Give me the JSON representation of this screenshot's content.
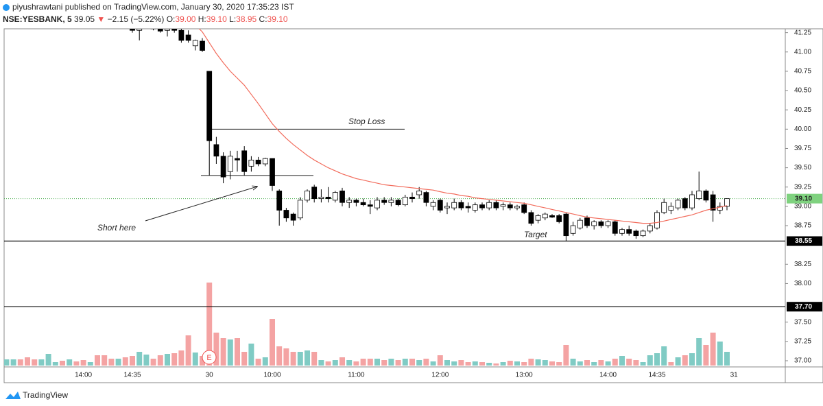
{
  "header": {
    "author_line": "piyushrawtani published on TradingView.com, January 30, 2020 17:35:23 IST",
    "symbol": "NSE:YESBANK, 5",
    "last": "39.05",
    "arrow": "▼",
    "change": "−2.15 (−5.22%)",
    "o_label": "O:",
    "o": "39.00",
    "h_label": "H:",
    "h": "39.10",
    "l_label": "L:",
    "l": "38.95",
    "c_label": "C:",
    "c": "39.10"
  },
  "footer": {
    "brand": "TradingView"
  },
  "chart_data": {
    "type": "candlestick",
    "categories": [
      null,
      null,
      null,
      null,
      null,
      null,
      null,
      null,
      null,
      null,
      null,
      "14:00",
      null,
      null,
      null,
      null,
      null,
      null,
      "14:35",
      null,
      null,
      null,
      null,
      null,
      null,
      null,
      null,
      null,
      null,
      "30",
      null,
      null,
      null,
      null,
      null,
      null,
      null,
      null,
      "10:00",
      null,
      null,
      null,
      null,
      null,
      null,
      null,
      null,
      null,
      null,
      null,
      "11:00",
      null,
      null,
      null,
      null,
      null,
      null,
      null,
      null,
      null,
      null,
      null,
      "12:00",
      null,
      null,
      null,
      null,
      null,
      null,
      null,
      null,
      null,
      null,
      null,
      "13:00",
      null,
      null,
      null,
      null,
      null,
      null,
      null,
      null,
      null,
      null,
      null,
      "14:00",
      null,
      null,
      null,
      null,
      null,
      null,
      "14:35",
      null,
      null,
      null,
      null,
      null,
      null,
      null,
      null,
      null,
      null,
      "31"
    ],
    "open": [
      null,
      null,
      null,
      null,
      null,
      null,
      null,
      null,
      null,
      null,
      null,
      null,
      null,
      null,
      null,
      null,
      null,
      null,
      41.3,
      41.28,
      41.35,
      41.33,
      41.3,
      41.28,
      41.3,
      41.28,
      41.22,
      41.08,
      41.14,
      40.75,
      39.8,
      39.65,
      39.45,
      39.62,
      39.72,
      39.52,
      39.6,
      39.55,
      39.62,
      39.2,
      38.95,
      38.9,
      38.85,
      39.08,
      39.25,
      39.1,
      39.12,
      39.08,
      39.2,
      39.05,
      39.08,
      39.05,
      39.02,
      38.98,
      39.08,
      39.05,
      39.08,
      39.02,
      39.12,
      39.15,
      39.18,
      39.0,
      39.08,
      38.98,
      38.98,
      39.05,
      39.0,
      38.95,
      39.02,
      38.98,
      39.05,
      39.0,
      39.02,
      38.98,
      39.02,
      38.92,
      38.82,
      38.85,
      38.88,
      38.88,
      38.9,
      38.65,
      38.72,
      38.85,
      38.75,
      38.8,
      38.75,
      38.8,
      38.65,
      38.7,
      38.68,
      38.62,
      38.68,
      38.72,
      38.92,
      38.95,
      38.98,
      39.1,
      38.98,
      39.1,
      39.2,
      39.15,
      38.95,
      39.0,
      null
    ],
    "high": [
      null,
      null,
      null,
      null,
      null,
      null,
      null,
      null,
      null,
      null,
      null,
      null,
      null,
      null,
      null,
      null,
      null,
      null,
      41.35,
      41.32,
      41.4,
      41.38,
      41.32,
      41.32,
      41.35,
      41.32,
      41.28,
      41.16,
      41.18,
      40.75,
      39.9,
      39.7,
      39.72,
      39.72,
      39.78,
      39.65,
      39.64,
      39.63,
      39.62,
      39.22,
      38.98,
      38.92,
      39.12,
      39.22,
      39.28,
      39.22,
      39.25,
      39.2,
      39.24,
      39.12,
      39.1,
      39.1,
      39.08,
      39.12,
      39.12,
      39.12,
      39.1,
      39.15,
      39.18,
      39.25,
      39.2,
      39.08,
      39.1,
      39.05,
      39.1,
      39.08,
      39.05,
      39.05,
      39.05,
      39.08,
      39.08,
      39.05,
      39.05,
      39.02,
      39.05,
      38.95,
      38.9,
      38.92,
      38.9,
      38.9,
      38.92,
      38.8,
      38.85,
      38.88,
      38.82,
      38.82,
      38.82,
      38.82,
      38.72,
      38.75,
      38.7,
      38.7,
      38.78,
      38.95,
      39.1,
      39.05,
      39.1,
      39.12,
      39.2,
      39.45,
      39.22,
      39.2,
      39.05,
      39.1,
      null
    ],
    "low": [
      null,
      null,
      null,
      null,
      null,
      null,
      null,
      null,
      null,
      null,
      null,
      null,
      null,
      null,
      null,
      null,
      null,
      null,
      41.25,
      41.15,
      41.3,
      41.28,
      41.25,
      41.2,
      41.25,
      41.12,
      41.12,
      41.02,
      41.0,
      39.4,
      39.55,
      39.3,
      39.35,
      39.45,
      39.4,
      39.45,
      39.52,
      39.52,
      39.2,
      38.75,
      38.8,
      38.75,
      38.82,
      39.05,
      39.05,
      39.05,
      39.05,
      39.05,
      39.0,
      38.98,
      39.0,
      39.0,
      38.9,
      38.95,
      39.02,
      39.0,
      39.0,
      39.0,
      39.05,
      39.1,
      39.0,
      38.95,
      38.92,
      38.9,
      38.95,
      38.95,
      38.92,
      38.92,
      38.95,
      38.95,
      38.95,
      38.95,
      38.95,
      38.95,
      38.9,
      38.75,
      38.78,
      38.82,
      38.85,
      38.78,
      38.55,
      38.62,
      38.7,
      38.72,
      38.7,
      38.72,
      38.72,
      38.62,
      38.62,
      38.62,
      38.58,
      38.6,
      38.65,
      38.7,
      38.9,
      38.9,
      38.95,
      38.95,
      38.95,
      39.08,
      39.05,
      38.8,
      38.9,
      38.95,
      null
    ],
    "close": [
      null,
      null,
      null,
      null,
      null,
      null,
      null,
      null,
      null,
      null,
      null,
      null,
      null,
      null,
      null,
      null,
      null,
      null,
      41.28,
      41.3,
      41.38,
      41.3,
      41.27,
      41.3,
      41.28,
      41.15,
      41.15,
      41.15,
      41.02,
      39.85,
      39.65,
      39.38,
      39.65,
      39.6,
      39.45,
      39.6,
      39.55,
      39.62,
      39.27,
      38.95,
      38.85,
      38.82,
      39.08,
      39.2,
      39.1,
      39.12,
      39.1,
      39.18,
      39.05,
      39.08,
      39.05,
      39.02,
      39.0,
      39.08,
      39.05,
      39.08,
      39.02,
      39.12,
      39.1,
      39.2,
      39.05,
      39.05,
      38.95,
      39.0,
      39.05,
      38.98,
      38.98,
      39.02,
      38.98,
      39.05,
      38.98,
      39.02,
      38.98,
      39.0,
      38.92,
      38.78,
      38.88,
      38.9,
      38.86,
      38.8,
      38.62,
      38.75,
      38.82,
      38.75,
      38.8,
      38.75,
      38.8,
      38.65,
      38.7,
      38.65,
      38.62,
      38.68,
      38.75,
      38.92,
      39.05,
      39.0,
      39.08,
      38.98,
      39.15,
      39.2,
      39.08,
      38.95,
      39.0,
      39.1,
      null
    ],
    "up_color": "#ffffff",
    "down_color": "#000000",
    "volume": [
      9,
      9,
      9,
      12,
      9,
      9,
      17,
      5,
      7,
      9,
      6,
      8,
      5,
      15,
      15,
      10,
      10,
      12,
      14,
      20,
      16,
      10,
      15,
      17,
      18,
      22,
      44,
      19,
      14,
      121,
      48,
      40,
      38,
      40,
      20,
      32,
      10,
      12,
      68,
      28,
      25,
      20,
      20,
      22,
      20,
      8,
      6,
      8,
      12,
      8,
      6,
      10,
      10,
      10,
      8,
      10,
      8,
      10,
      10,
      8,
      10,
      6,
      15,
      8,
      6,
      8,
      5,
      6,
      5,
      4,
      3,
      5,
      7,
      6,
      5,
      10,
      9,
      8,
      6,
      5,
      30,
      10,
      6,
      8,
      5,
      8,
      6,
      10,
      14,
      10,
      8,
      5,
      15,
      18,
      28,
      5,
      12,
      15,
      18,
      40,
      30,
      48,
      35,
      20,
      null
    ],
    "volume_colors": [
      "#80cbc4",
      "#80cbc4",
      "#f4a3a3",
      "#f4a3a3",
      "#f4a3a3",
      "#80cbc4",
      "#80cbc4",
      "#80cbc4",
      "#f4a3a3",
      "#80cbc4",
      "#f4a3a3",
      "#f4a3a3",
      "#80cbc4",
      "#f4a3a3",
      "#f4a3a3",
      "#f4a3a3",
      "#80cbc4",
      "#f4a3a3",
      "#f4a3a3",
      "#80cbc4",
      "#80cbc4",
      "#f4a3a3",
      "#f4a3a3",
      "#80cbc4",
      "#f4a3a3",
      "#f4a3a3",
      "#f4a3a3",
      "#80cbc4",
      "#f4a3a3",
      "#f4a3a3",
      "#f4a3a3",
      "#f4a3a3",
      "#80cbc4",
      "#f4a3a3",
      "#f4a3a3",
      "#80cbc4",
      "#f4a3a3",
      "#80cbc4",
      "#f4a3a3",
      "#f4a3a3",
      "#f4a3a3",
      "#f4a3a3",
      "#80cbc4",
      "#80cbc4",
      "#f4a3a3",
      "#80cbc4",
      "#f4a3a3",
      "#80cbc4",
      "#f4a3a3",
      "#80cbc4",
      "#f4a3a3",
      "#f4a3a3",
      "#f4a3a3",
      "#80cbc4",
      "#f4a3a3",
      "#80cbc4",
      "#f4a3a3",
      "#80cbc4",
      "#f4a3a3",
      "#80cbc4",
      "#f4a3a3",
      "#80cbc4",
      "#f4a3a3",
      "#80cbc4",
      "#80cbc4",
      "#f4a3a3",
      "#f4a3a3",
      "#80cbc4",
      "#f4a3a3",
      "#80cbc4",
      "#f4a3a3",
      "#80cbc4",
      "#f4a3a3",
      "#80cbc4",
      "#f4a3a3",
      "#f4a3a3",
      "#80cbc4",
      "#80cbc4",
      "#f4a3a3",
      "#f4a3a3",
      "#f4a3a3",
      "#80cbc4",
      "#80cbc4",
      "#f4a3a3",
      "#80cbc4",
      "#f4a3a3",
      "#80cbc4",
      "#f4a3a3",
      "#80cbc4",
      "#f4a3a3",
      "#f4a3a3",
      "#80cbc4",
      "#80cbc4",
      "#80cbc4",
      "#80cbc4",
      "#f4a3a3",
      "#80cbc4",
      "#f4a3a3",
      "#80cbc4",
      "#80cbc4",
      "#f4a3a3",
      "#f4a3a3",
      "#80cbc4",
      "#80cbc4",
      null
    ],
    "ma": [
      null,
      null,
      null,
      null,
      null,
      null,
      null,
      null,
      null,
      null,
      null,
      null,
      null,
      null,
      null,
      null,
      null,
      null,
      null,
      null,
      null,
      null,
      null,
      null,
      null,
      null,
      null,
      41.35,
      41.26,
      41.12,
      40.98,
      40.86,
      40.75,
      40.66,
      40.57,
      40.45,
      40.33,
      40.2,
      40.07,
      39.97,
      39.88,
      39.8,
      39.73,
      39.66,
      39.6,
      39.55,
      39.5,
      39.46,
      39.42,
      39.39,
      39.36,
      39.34,
      39.32,
      39.3,
      39.28,
      39.27,
      39.26,
      39.25,
      39.24,
      39.23,
      39.22,
      39.21,
      39.19,
      39.17,
      39.16,
      39.14,
      39.13,
      39.11,
      39.1,
      39.09,
      39.08,
      39.07,
      39.06,
      39.05,
      39.04,
      39.02,
      39.0,
      38.98,
      38.96,
      38.94,
      38.92,
      38.9,
      38.88,
      38.86,
      38.85,
      38.84,
      38.83,
      38.82,
      38.81,
      38.8,
      38.79,
      38.78,
      38.78,
      38.79,
      38.81,
      38.83,
      38.85,
      38.87,
      38.89,
      38.92,
      38.95,
      38.97,
      38.99,
      39.01,
      null
    ],
    "ma_color": "#f26b5b",
    "ylim": [
      36.92,
      41.3
    ],
    "yticks": [
      {
        "value": 37,
        "label": "37.00"
      },
      37.25,
      {
        "value": 37.5,
        "label": "37.50"
      },
      {
        "value": 38,
        "label": "38.00"
      },
      38.25,
      38.75,
      {
        "value": 39,
        "label": "39.00"
      },
      39.25,
      {
        "value": 39.5,
        "label": "39.50"
      },
      39.75,
      {
        "value": 40,
        "label": "40.00"
      },
      40.25,
      {
        "value": 40.5,
        "label": "40.50"
      },
      40.75,
      {
        "value": 41,
        "label": "41.00"
      },
      41.25
    ],
    "last_price": {
      "value": 39.1,
      "label": "39.10"
    },
    "hlines": [
      38.55,
      {
        "value": 37.7,
        "label": "37.70"
      }
    ],
    "stop_loss": {
      "label": "Stop Loss",
      "value": 40
    },
    "entry_line": 39.4,
    "short_label": "Short here",
    "target_label": "Target",
    "earnings_marker": "E"
  }
}
